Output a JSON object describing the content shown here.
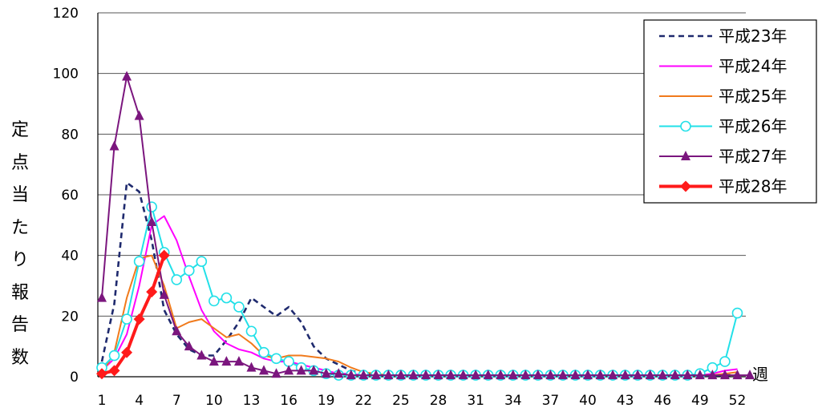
{
  "chart_data": {
    "type": "line",
    "xlabel": "週",
    "ylabel": "定点当たり報告数",
    "ylim": [
      0,
      120
    ],
    "yticks": [
      0,
      20,
      40,
      60,
      80,
      100,
      120
    ],
    "xticks": [
      1,
      4,
      7,
      10,
      13,
      16,
      19,
      22,
      25,
      28,
      31,
      34,
      37,
      40,
      43,
      46,
      49,
      52
    ],
    "xlim": [
      1,
      53
    ],
    "grid": "horizontal",
    "legend_position": "top-right",
    "series": [
      {
        "name": "平成23年",
        "color": "#1f2a6e",
        "style": "dashed",
        "marker": "none",
        "x": [
          1,
          2,
          3,
          4,
          5,
          6,
          7,
          8,
          9,
          10,
          11,
          12,
          13,
          14,
          15,
          16,
          17,
          18,
          19,
          20,
          21,
          22,
          23,
          24,
          25,
          26,
          27,
          28,
          29,
          30,
          31,
          32,
          33,
          34,
          35,
          36,
          37,
          38,
          39,
          40,
          41,
          42,
          43,
          44,
          45,
          46,
          47,
          48,
          49,
          50,
          51,
          52
        ],
        "values": [
          5,
          24,
          64,
          61,
          45,
          22,
          14,
          9,
          7,
          7,
          12,
          18,
          26,
          23,
          20,
          23,
          18,
          10,
          6,
          4,
          2,
          1,
          0.5,
          0.5,
          0.3,
          0.3,
          0.3,
          0.3,
          0.3,
          0.3,
          0.3,
          0.3,
          0.3,
          0.3,
          0.3,
          0.3,
          0.3,
          0.3,
          0.3,
          0.3,
          0.3,
          0.3,
          0.3,
          0.3,
          0.3,
          0.3,
          0.3,
          0.3,
          0.3,
          0.3,
          0.5,
          0.5
        ]
      },
      {
        "name": "平成24年",
        "color": "#ff00ff",
        "style": "solid",
        "marker": "none",
        "x": [
          1,
          2,
          3,
          4,
          5,
          6,
          7,
          8,
          9,
          10,
          11,
          12,
          13,
          14,
          15,
          16,
          17,
          18,
          19,
          20,
          21,
          22,
          23,
          24,
          25,
          26,
          27,
          28,
          29,
          30,
          31,
          32,
          33,
          34,
          35,
          36,
          37,
          38,
          39,
          40,
          41,
          42,
          43,
          44,
          45,
          46,
          47,
          48,
          49,
          50,
          51,
          52
        ],
        "values": [
          2,
          6,
          14,
          30,
          50,
          53,
          45,
          33,
          22,
          15,
          11,
          9,
          8,
          6,
          5,
          5,
          4,
          3,
          2,
          1,
          1,
          0.5,
          0.5,
          0.5,
          0.5,
          0.5,
          0.5,
          0.5,
          0.5,
          0.5,
          0.5,
          0.5,
          0.5,
          0.5,
          0.5,
          0.5,
          0.5,
          0.5,
          0.5,
          0.5,
          0.5,
          0.5,
          0.5,
          0.5,
          0.5,
          0.5,
          0.5,
          0.5,
          0.5,
          1,
          2,
          2.5
        ]
      },
      {
        "name": "平成25年",
        "color": "#f07a1c",
        "style": "solid",
        "marker": "none",
        "x": [
          1,
          2,
          3,
          4,
          5,
          6,
          7,
          8,
          9,
          10,
          11,
          12,
          13,
          14,
          15,
          16,
          17,
          18,
          19,
          20,
          21,
          22,
          23,
          24,
          25,
          26,
          27,
          28,
          29,
          30,
          31,
          32,
          33,
          34,
          35,
          36,
          37,
          38,
          39,
          40,
          41,
          42,
          43,
          44,
          45,
          46,
          47,
          48,
          49,
          50,
          51,
          52
        ],
        "values": [
          1,
          8,
          26,
          39,
          40,
          30,
          16,
          18,
          19,
          16,
          13,
          14,
          11,
          7,
          6,
          7,
          7,
          6.5,
          6,
          5,
          3,
          1.5,
          1,
          0.5,
          0.5,
          0.5,
          0.5,
          0.5,
          0.5,
          0.5,
          0.5,
          0.5,
          0.5,
          0.5,
          0.5,
          0.5,
          0.5,
          0.5,
          0.5,
          0.5,
          0.5,
          0.5,
          0.5,
          0.5,
          0.5,
          0.5,
          0.5,
          0.5,
          0.5,
          0.5,
          1,
          1.5
        ]
      },
      {
        "name": "平成26年",
        "color": "#22e0e8",
        "style": "solid",
        "marker": "circle",
        "x": [
          1,
          2,
          3,
          4,
          5,
          6,
          7,
          8,
          9,
          10,
          11,
          12,
          13,
          14,
          15,
          16,
          17,
          18,
          19,
          20,
          21,
          22,
          23,
          24,
          25,
          26,
          27,
          28,
          29,
          30,
          31,
          32,
          33,
          34,
          35,
          36,
          37,
          38,
          39,
          40,
          41,
          42,
          43,
          44,
          45,
          46,
          47,
          48,
          49,
          50,
          51,
          52
        ],
        "values": [
          3,
          7,
          19,
          38,
          56,
          41,
          32,
          35,
          38,
          25,
          26,
          23,
          15,
          8,
          6,
          5,
          3,
          2,
          1,
          0.5,
          0.5,
          0.5,
          0.5,
          0.5,
          0.5,
          0.5,
          0.5,
          0.5,
          0.5,
          0.5,
          0.5,
          0.5,
          0.5,
          0.5,
          0.5,
          0.5,
          0.5,
          0.5,
          0.5,
          0.5,
          0.5,
          0.5,
          0.5,
          0.5,
          0.5,
          0.5,
          0.5,
          0.5,
          1,
          3,
          5,
          21
        ]
      },
      {
        "name": "平成27年",
        "color": "#7b167e",
        "style": "solid",
        "marker": "triangle",
        "x": [
          1,
          2,
          3,
          4,
          5,
          6,
          7,
          8,
          9,
          10,
          11,
          12,
          13,
          14,
          15,
          16,
          17,
          18,
          19,
          20,
          21,
          22,
          23,
          24,
          25,
          26,
          27,
          28,
          29,
          30,
          31,
          32,
          33,
          34,
          35,
          36,
          37,
          38,
          39,
          40,
          41,
          42,
          43,
          44,
          45,
          46,
          47,
          48,
          49,
          50,
          51,
          52,
          53
        ],
        "values": [
          26,
          76,
          99,
          86,
          51,
          27,
          15,
          10,
          7,
          5,
          5,
          5,
          3,
          2,
          1,
          2,
          2,
          2,
          1,
          1,
          0.5,
          0.5,
          0.5,
          0.5,
          0.5,
          0.5,
          0.5,
          0.5,
          0.5,
          0.5,
          0.5,
          0.5,
          0.5,
          0.5,
          0.5,
          0.5,
          0.5,
          0.5,
          0.5,
          0.5,
          0.5,
          0.5,
          0.5,
          0.5,
          0.5,
          0.5,
          0.5,
          0.5,
          0.5,
          0.5,
          0.5,
          0.5,
          0.5
        ]
      },
      {
        "name": "平成28年",
        "color": "#ff1a1a",
        "style": "bold",
        "marker": "diamond",
        "x": [
          1,
          2,
          3,
          4,
          5,
          6
        ],
        "values": [
          1,
          2,
          8,
          19,
          28,
          40
        ]
      }
    ]
  }
}
